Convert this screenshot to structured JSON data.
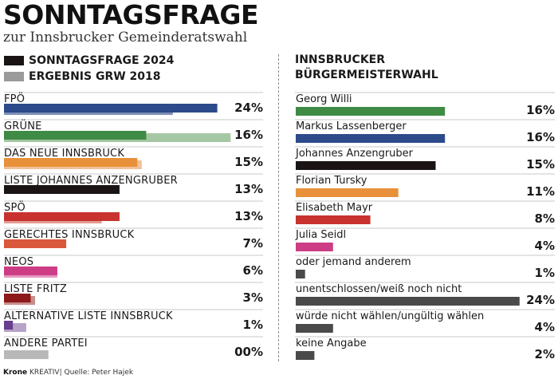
{
  "header": {
    "title": "SONNTAGSFRAGE",
    "subtitle": "zur Innsbrucker Gemeinderatswahl"
  },
  "legend": [
    {
      "label": "SONNTAGSFRAGE 2024",
      "color": "#1a1414"
    },
    {
      "label": "ERGEBNIS GRW 2018",
      "color": "#9a9a9a"
    }
  ],
  "right_header": {
    "line1": "INNSBRUCKER",
    "line2": "BÜRGERMEISTERWAHL"
  },
  "footer": {
    "brand": "Krone",
    "brand_suffix": "KREATIV",
    "source": "| Quelle: Peter Hajek"
  },
  "chart_data": [
    {
      "type": "bar",
      "orientation": "horizontal",
      "categories": [
        "FPÖ",
        "GRÜNE",
        "DAS NEUE INNSBRUCK",
        "LISTE JOHANNES ANZENGRUBER",
        "SPÖ",
        "GERECHTES INNSBRUCK",
        "NEOS",
        "LISTE FRITZ",
        "ALTERNATIVE LISTE INNSBRUCK",
        "ANDERE PARTEI"
      ],
      "series": [
        {
          "name": "SONNTAGSFRAGE 2024",
          "values": [
            24,
            16,
            15,
            13,
            13,
            7,
            6,
            3,
            1,
            0
          ]
        },
        {
          "name": "ERGEBNIS GRW 2018",
          "values": [
            19,
            25.5,
            15.5,
            0,
            11,
            0,
            6,
            3.5,
            2.5,
            5
          ]
        }
      ],
      "value_labels": [
        "24%",
        "16%",
        "15%",
        "13%",
        "13%",
        "7%",
        "6%",
        "3%",
        "1%",
        "00%"
      ],
      "colors": [
        "#2d4a8a",
        "#3f8a45",
        "#e8903a",
        "#1a1414",
        "#c8332f",
        "#d9573a",
        "#cc3d86",
        "#8c1a1a",
        "#6a3d8f",
        "#4a4a4a"
      ],
      "colors_2018": [
        "#7f8fb8",
        "#a6c7a3",
        "#f1c198",
        "#9a9a9a",
        "#e39c92",
        "#e8a895",
        "#e59ac2",
        "#c88c8c",
        "#b7a3c7",
        "#b8b8b8"
      ]
    },
    {
      "type": "bar",
      "orientation": "horizontal",
      "title": "INNSBRUCKER BÜRGERMEISTERWAHL",
      "categories": [
        "Georg Willi",
        "Markus Lassenberger",
        "Johannes Anzengruber",
        "Florian Tursky",
        "Elisabeth Mayr",
        "Julia Seidl",
        "oder jemand anderem",
        "unentschlossen/weiß noch nicht",
        "würde nicht wählen/ungültig wählen",
        "keine Angabe"
      ],
      "values": [
        16,
        16,
        15,
        11,
        8,
        4,
        1,
        24,
        4,
        2
      ],
      "value_labels": [
        "16%",
        "16%",
        "15%",
        "11%",
        "8%",
        "4%",
        "1%",
        "24%",
        "4%",
        "2%"
      ],
      "colors": [
        "#3f8a45",
        "#2d4a8a",
        "#1a1414",
        "#e8903a",
        "#c8332f",
        "#cc3d86",
        "#4a4a4a",
        "#4a4a4a",
        "#4a4a4a",
        "#4a4a4a"
      ]
    }
  ]
}
